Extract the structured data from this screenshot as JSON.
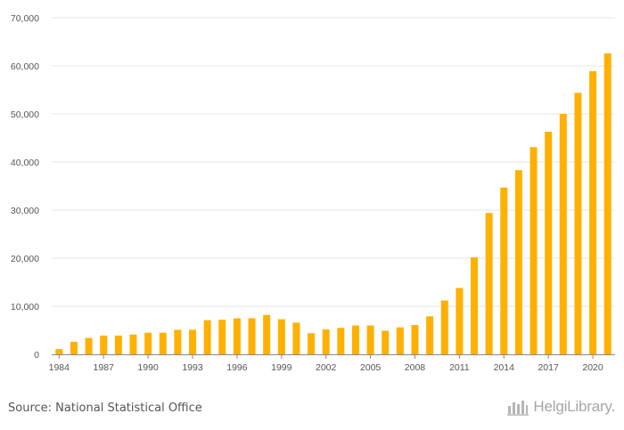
{
  "chart_data": {
    "type": "bar",
    "x": [
      1984,
      1985,
      1986,
      1987,
      1988,
      1989,
      1990,
      1991,
      1992,
      1993,
      1994,
      1995,
      1996,
      1997,
      1998,
      1999,
      2000,
      2001,
      2002,
      2003,
      2004,
      2005,
      2006,
      2007,
      2008,
      2009,
      2010,
      2011,
      2012,
      2013,
      2014,
      2015,
      2016,
      2017,
      2018,
      2019,
      2020,
      2021
    ],
    "values": [
      1100,
      2600,
      3400,
      3900,
      3900,
      4100,
      4500,
      4500,
      5100,
      5100,
      7100,
      7200,
      7500,
      7500,
      8200,
      7300,
      6600,
      4400,
      5200,
      5500,
      6000,
      6000,
      4900,
      5600,
      6100,
      7900,
      11200,
      13800,
      20200,
      29400,
      34700,
      38300,
      43100,
      46300,
      50000,
      54400,
      58900,
      62600
    ],
    "x_tick_labels": [
      "1984",
      "1987",
      "1990",
      "1993",
      "1996",
      "1999",
      "2002",
      "2005",
      "2008",
      "2011",
      "2014",
      "2017",
      "2020"
    ],
    "y_tick_labels": [
      "0",
      "10,000",
      "20,000",
      "30,000",
      "40,000",
      "50,000",
      "60,000",
      "70,000"
    ],
    "ylim": [
      0,
      70000
    ],
    "bar_color": "#FFB000",
    "grid": true,
    "title": "",
    "xlabel": "",
    "ylabel": ""
  },
  "footer": {
    "source": "Source: National Statistical Office",
    "brand": "HelgiLibrary."
  }
}
